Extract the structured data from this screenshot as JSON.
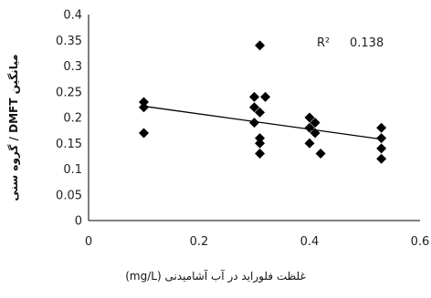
{
  "chart_data": {
    "type": "scatter",
    "xlabel": "غلظت فلوراید در آب آشامیدنی (mg/L)",
    "ylabel": "میانگین DMFT / گروه سنی",
    "xlim": [
      0,
      0.6
    ],
    "ylim": [
      0,
      0.4
    ],
    "x_ticks": [
      "0",
      "0.2",
      "0.4",
      "0.6"
    ],
    "y_ticks": [
      "0",
      "0.05",
      "0.1",
      "0.15",
      "0.2",
      "0.25",
      "0.3",
      "0.35",
      "0.4"
    ],
    "grid": false,
    "marker": "diamond",
    "marker_color": "#000000",
    "points": [
      {
        "x": 0.1,
        "y": 0.23
      },
      {
        "x": 0.1,
        "y": 0.22
      },
      {
        "x": 0.1,
        "y": 0.17
      },
      {
        "x": 0.31,
        "y": 0.34
      },
      {
        "x": 0.3,
        "y": 0.24
      },
      {
        "x": 0.32,
        "y": 0.24
      },
      {
        "x": 0.3,
        "y": 0.22
      },
      {
        "x": 0.31,
        "y": 0.21
      },
      {
        "x": 0.3,
        "y": 0.19
      },
      {
        "x": 0.31,
        "y": 0.16
      },
      {
        "x": 0.31,
        "y": 0.15
      },
      {
        "x": 0.31,
        "y": 0.13
      },
      {
        "x": 0.4,
        "y": 0.2
      },
      {
        "x": 0.41,
        "y": 0.19
      },
      {
        "x": 0.4,
        "y": 0.18
      },
      {
        "x": 0.41,
        "y": 0.17
      },
      {
        "x": 0.4,
        "y": 0.15
      },
      {
        "x": 0.42,
        "y": 0.13
      },
      {
        "x": 0.53,
        "y": 0.18
      },
      {
        "x": 0.53,
        "y": 0.16
      },
      {
        "x": 0.53,
        "y": 0.14
      },
      {
        "x": 0.53,
        "y": 0.12
      }
    ],
    "trendline": {
      "type": "linear",
      "x": [
        0.1,
        0.53
      ],
      "y": [
        0.222,
        0.158
      ],
      "color": "#000000"
    },
    "annotation": {
      "r2_label": "R²",
      "r2_value": "0.138"
    }
  }
}
